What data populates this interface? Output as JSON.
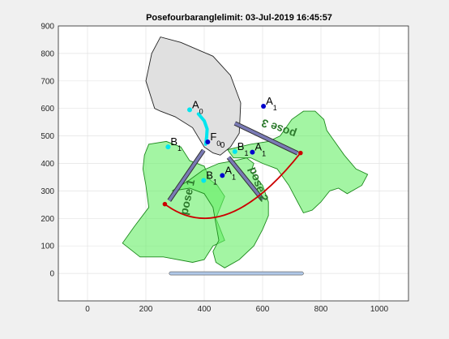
{
  "title": "Posefourbaranglelimit: 03-Jul-2019 16:45:57",
  "colors": {
    "figure_bg": "#f0f0f0",
    "axes_bg": "#ffffff",
    "body_fill": "#e0e0e0",
    "pose_fill": "#66ee66",
    "pose_edge": "#1d8a1d",
    "arc": "#cc0000",
    "link": "#7a7ab5",
    "pivot": "#0000cc",
    "cyan": "#00e5ee",
    "ground": "#b0c8e8"
  },
  "chart_data": {
    "type": "diagram-plot",
    "xlim": [
      -100,
      1100
    ],
    "ylim": [
      -100,
      900
    ],
    "xticks": [
      "0",
      "200",
      "400",
      "600",
      "800",
      "1000"
    ],
    "yticks": [
      "0",
      "100",
      "200",
      "300",
      "400",
      "500",
      "600",
      "700",
      "800",
      "900"
    ],
    "grid": true,
    "body_outline": [
      [
        230,
        600
      ],
      [
        200,
        700
      ],
      [
        220,
        800
      ],
      [
        250,
        860
      ],
      [
        320,
        840
      ],
      [
        430,
        790
      ],
      [
        490,
        720
      ],
      [
        525,
        620
      ],
      [
        520,
        510
      ],
      [
        490,
        460
      ],
      [
        455,
        430
      ],
      [
        430,
        438
      ],
      [
        400,
        460
      ],
      [
        360,
        530
      ],
      [
        300,
        570
      ],
      [
        250,
        590
      ]
    ],
    "pose_shapes": [
      {
        "name": "pose 1",
        "points": [
          [
            210,
            470
          ],
          [
            270,
            480
          ],
          [
            320,
            460
          ],
          [
            350,
            410
          ],
          [
            400,
            390
          ],
          [
            420,
            340
          ],
          [
            445,
            320
          ],
          [
            470,
            280
          ],
          [
            455,
            240
          ],
          [
            440,
            200
          ],
          [
            470,
            120
          ],
          [
            430,
            100
          ],
          [
            400,
            50
          ],
          [
            360,
            40
          ],
          [
            260,
            60
          ],
          [
            180,
            60
          ],
          [
            120,
            110
          ],
          [
            160,
            170
          ],
          [
            210,
            240
          ],
          [
            200,
            320
          ],
          [
            190,
            380
          ],
          [
            195,
            430
          ]
        ]
      },
      {
        "name": "pose 2",
        "points": [
          [
            290,
            300
          ],
          [
            350,
            340
          ],
          [
            395,
            375
          ],
          [
            450,
            400
          ],
          [
            505,
            410
          ],
          [
            545,
            420
          ],
          [
            570,
            400
          ],
          [
            560,
            370
          ],
          [
            600,
            320
          ],
          [
            620,
            260
          ],
          [
            620,
            210
          ],
          [
            600,
            160
          ],
          [
            570,
            100
          ],
          [
            520,
            50
          ],
          [
            470,
            20
          ],
          [
            440,
            40
          ],
          [
            430,
            80
          ],
          [
            450,
            120
          ],
          [
            440,
            180
          ],
          [
            430,
            240
          ],
          [
            400,
            290
          ],
          [
            350,
            310
          ]
        ]
      },
      {
        "name": "pose 3",
        "points": [
          [
            480,
            450
          ],
          [
            520,
            460
          ],
          [
            560,
            470
          ],
          [
            620,
            480
          ],
          [
            660,
            500
          ],
          [
            700,
            560
          ],
          [
            740,
            590
          ],
          [
            780,
            590
          ],
          [
            810,
            560
          ],
          [
            820,
            520
          ],
          [
            840,
            490
          ],
          [
            880,
            430
          ],
          [
            920,
            380
          ],
          [
            960,
            360
          ],
          [
            940,
            320
          ],
          [
            890,
            290
          ],
          [
            860,
            310
          ],
          [
            830,
            300
          ],
          [
            800,
            260
          ],
          [
            770,
            230
          ],
          [
            740,
            220
          ],
          [
            720,
            260
          ],
          [
            690,
            320
          ],
          [
            650,
            380
          ],
          [
            600,
            400
          ],
          [
            560,
            420
          ],
          [
            500,
            420
          ]
        ]
      }
    ],
    "pose_labels": [
      {
        "text": "pose 1",
        "x": 355,
        "y": 275,
        "rotate": -78
      },
      {
        "text": "pose 2",
        "x": 575,
        "y": 320,
        "rotate": 70
      },
      {
        "text": "pose 3",
        "x": 660,
        "y": 540,
        "rotate": 200
      }
    ],
    "arc": {
      "start": [
        265,
        252
      ],
      "end": [
        730,
        438
      ]
    },
    "links": [
      {
        "from": [
          280,
          265
        ],
        "to": [
          398,
          448
        ]
      },
      {
        "from": [
          600,
          268
        ],
        "to": [
          483,
          422
        ]
      },
      {
        "from": [
          720,
          437
        ],
        "to": [
          505,
          546
        ]
      }
    ],
    "pivots": [
      {
        "label": "A",
        "sub": "1",
        "x": 603,
        "y": 608,
        "color": "#0000cc"
      },
      {
        "label": "A",
        "sub": "1",
        "x": 565,
        "y": 441,
        "color": "#0000cc"
      },
      {
        "label": "A",
        "sub": "1",
        "x": 462,
        "y": 356,
        "color": "#0000cc"
      },
      {
        "label": "A",
        "sub": "0",
        "x": 350,
        "y": 595,
        "color": "#00e5ee"
      },
      {
        "label": "B",
        "sub": "1",
        "x": 276,
        "y": 460,
        "color": "#00e5ee"
      },
      {
        "label": "B",
        "sub": "1",
        "x": 505,
        "y": 443,
        "color": "#00e5ee"
      },
      {
        "label": "B",
        "sub": "1",
        "x": 398,
        "y": 338,
        "color": "#00e5ee"
      },
      {
        "label": "F",
        "sub": "0",
        "x": 412,
        "y": 478,
        "color": "#0000cc"
      }
    ],
    "origin_labels": [
      {
        "text": "0",
        "x": 455,
        "y": 457
      }
    ],
    "ground_bar": {
      "x0": 280,
      "x1": 740,
      "y": 0
    },
    "cyan_path": [
      [
        380,
        580
      ],
      [
        400,
        555
      ],
      [
        410,
        525
      ],
      [
        408,
        495
      ],
      [
        405,
        470
      ]
    ]
  }
}
